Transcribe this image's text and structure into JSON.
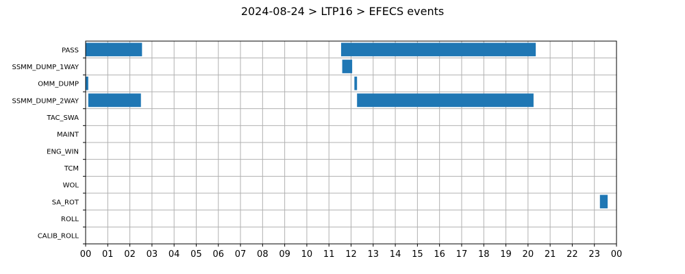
{
  "chart_data": {
    "type": "bar",
    "title": "2024-08-24 > LTP16 > EFECS events",
    "xlabel": "",
    "ylabel": "",
    "grid": true,
    "xlim": [
      0,
      24
    ],
    "x_tick_labels": [
      "00",
      "01",
      "02",
      "03",
      "04",
      "05",
      "06",
      "07",
      "08",
      "09",
      "10",
      "11",
      "12",
      "13",
      "14",
      "15",
      "16",
      "17",
      "18",
      "19",
      "20",
      "21",
      "22",
      "23",
      "00"
    ],
    "categories": [
      "PASS",
      "SSMM_DUMP_1WAY",
      "OMM_DUMP",
      "SSMM_DUMP_2WAY",
      "TAC_SWA",
      "MAINT",
      "ENG_WIN",
      "TCM",
      "WOL",
      "SA_ROT",
      "ROLL",
      "CALIB_ROLL"
    ],
    "bar_color": "#1f77b4",
    "events": [
      {
        "category": "PASS",
        "start": 0.0,
        "end": 2.55
      },
      {
        "category": "PASS",
        "start": 11.55,
        "end": 20.35
      },
      {
        "category": "SSMM_DUMP_1WAY",
        "start": 11.6,
        "end": 12.05
      },
      {
        "category": "OMM_DUMP",
        "start": 0.0,
        "end": 0.12
      },
      {
        "category": "OMM_DUMP",
        "start": 12.15,
        "end": 12.27
      },
      {
        "category": "SSMM_DUMP_2WAY",
        "start": 0.12,
        "end": 2.5
      },
      {
        "category": "SSMM_DUMP_2WAY",
        "start": 12.27,
        "end": 20.25
      },
      {
        "category": "SA_ROT",
        "start": 23.25,
        "end": 23.6
      }
    ]
  }
}
